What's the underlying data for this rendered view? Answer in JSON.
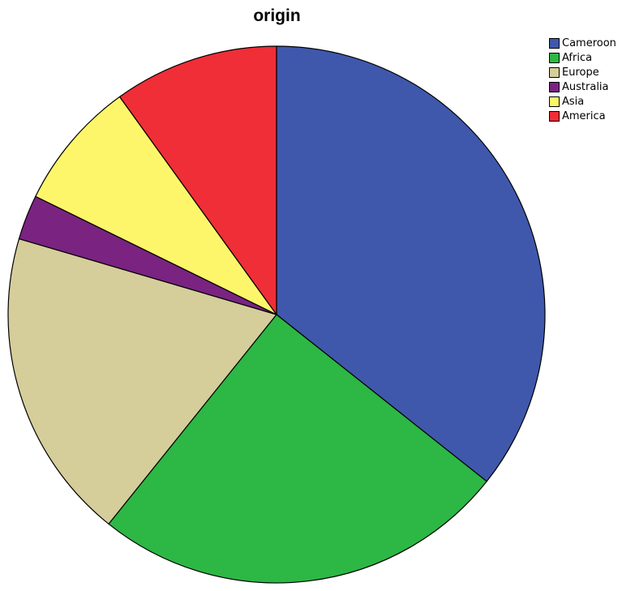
{
  "chart_data": {
    "type": "pie",
    "title": "origin",
    "legend_position": "top-right",
    "slices": [
      {
        "label": "Cameroon",
        "value": 37.0,
        "color": "#3F58AC"
      },
      {
        "label": "Africa",
        "value": 26.0,
        "color": "#2DB745"
      },
      {
        "label": "Europe",
        "value": 19.5,
        "color": "#D5CD9A"
      },
      {
        "label": "Australia",
        "value": 2.8,
        "color": "#7A2381"
      },
      {
        "label": "Asia",
        "value": 8.1,
        "color": "#FDF66B"
      },
      {
        "label": "America",
        "value": 10.3,
        "color": "#EF2E37"
      }
    ]
  }
}
